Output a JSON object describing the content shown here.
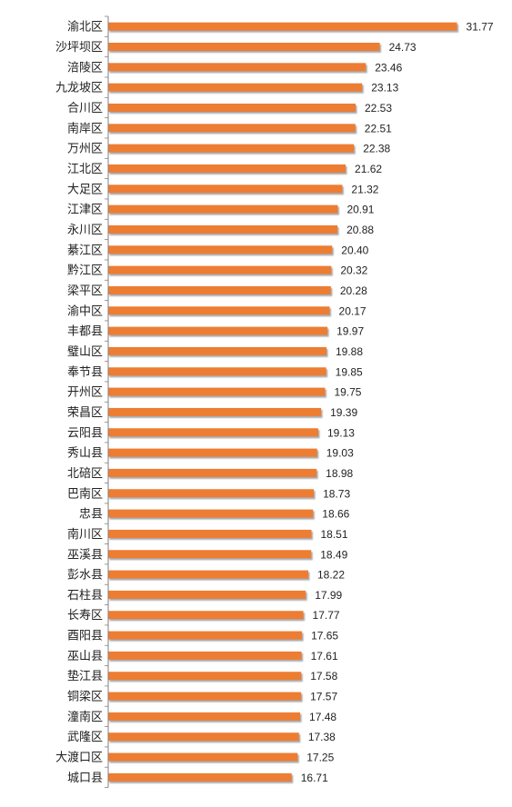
{
  "chart_data": {
    "type": "bar",
    "orientation": "horizontal",
    "title": "",
    "xlabel": "",
    "ylabel": "",
    "grid": false,
    "legend": "none",
    "bar_color": "#ED7D31",
    "bar_shadow_color": "#A6A6A6",
    "axis_color": "#808080",
    "xlim": [
      0,
      32.8
    ],
    "categories": [
      "渝北区",
      "沙坪坝区",
      "涪陵区",
      "九龙坡区",
      "合川区",
      "南岸区",
      "万州区",
      "江北区",
      "大足区",
      "江津区",
      "永川区",
      "綦江区",
      "黔江区",
      "梁平区",
      "渝中区",
      "丰都县",
      "璧山区",
      "奉节县",
      "开州区",
      "荣昌区",
      "云阳县",
      "秀山县",
      "北碚区",
      "巴南区",
      "忠县",
      "南川区",
      "巫溪县",
      "彭水县",
      "石柱县",
      "长寿区",
      "酉阳县",
      "巫山县",
      "垫江县",
      "铜梁区",
      "潼南区",
      "武隆区",
      "大渡口区",
      "城口县"
    ],
    "values": [
      31.77,
      24.73,
      23.46,
      23.13,
      22.53,
      22.51,
      22.38,
      21.62,
      21.32,
      20.91,
      20.88,
      20.4,
      20.32,
      20.28,
      20.17,
      19.97,
      19.88,
      19.85,
      19.75,
      19.39,
      19.13,
      19.03,
      18.98,
      18.73,
      18.66,
      18.51,
      18.49,
      18.22,
      17.99,
      17.77,
      17.65,
      17.61,
      17.58,
      17.57,
      17.48,
      17.38,
      17.25,
      16.71
    ],
    "value_labels": [
      "31.77",
      "24.73",
      "23.46",
      "23.13",
      "22.53",
      "22.51",
      "22.38",
      "21.62",
      "21.32",
      "20.91",
      "20.88",
      "20.40",
      "20.32",
      "20.28",
      "20.17",
      "19.97",
      "19.88",
      "19.85",
      "19.75",
      "19.39",
      "19.13",
      "19.03",
      "18.98",
      "18.73",
      "18.66",
      "18.51",
      "18.49",
      "18.22",
      "17.99",
      "17.77",
      "17.65",
      "17.61",
      "17.58",
      "17.57",
      "17.48",
      "17.38",
      "17.25",
      "16.71"
    ]
  }
}
